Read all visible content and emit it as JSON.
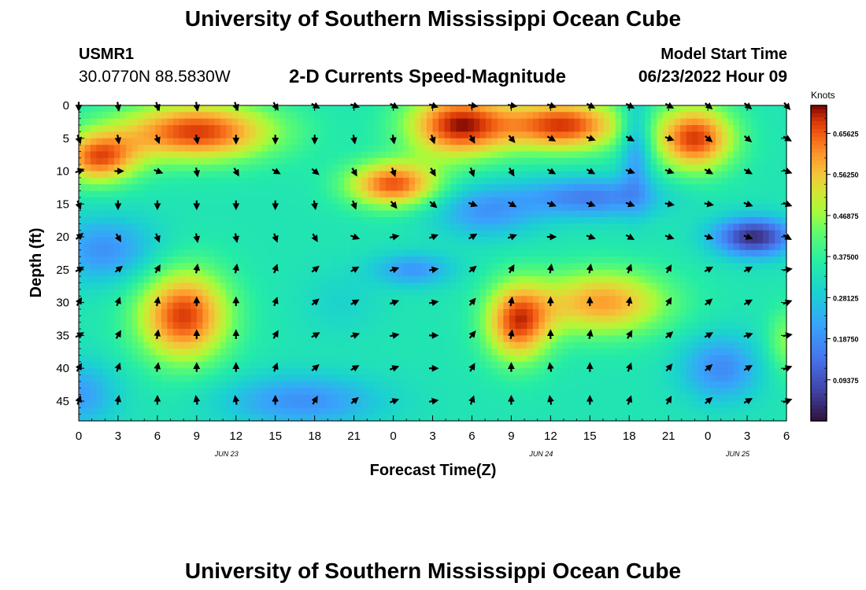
{
  "page": {
    "title": "University of Southern Mississippi Ocean Cube",
    "title_repeat": "University of Southern Mississippi Ocean Cube",
    "station": "USMR1",
    "coordinates": "30.0770N  88.5830W",
    "subtitle": "2-D Currents Speed-Magnitude",
    "model_start_label": "Model Start Time",
    "model_start_value": "06/23/2022 Hour 09"
  },
  "chart_data": {
    "type": "heatmap",
    "title": "2-D Currents Speed-Magnitude",
    "xlabel": "Forecast Time(Z)",
    "ylabel": "Depth (ft)",
    "x_tick_labels": [
      "0",
      "3",
      "6",
      "9",
      "12",
      "15",
      "18",
      "21",
      "0",
      "3",
      "6",
      "9",
      "12",
      "15",
      "18",
      "21",
      "0",
      "3",
      "6"
    ],
    "x_range_hours": [
      0,
      54
    ],
    "date_labels": [
      {
        "label": "JUN 23",
        "hour": 12
      },
      {
        "label": "JUN 24",
        "hour": 36
      },
      {
        "label": "JUN 25",
        "hour": 51
      }
    ],
    "y_ticks": [
      0,
      5,
      10,
      15,
      20,
      25,
      30,
      35,
      40,
      45
    ],
    "y_range": [
      0,
      48
    ],
    "colorbar": {
      "units": "Knots",
      "min": 0.0,
      "max": 0.72,
      "tick_values": [
        0.09375,
        0.1875,
        0.28125,
        0.375,
        0.46875,
        0.5625,
        0.65625
      ],
      "tick_labels": [
        "0.09375",
        "0.18750",
        "0.28125",
        "0.37500",
        "0.46875",
        "0.56250",
        "0.65625"
      ]
    },
    "speed_field": {
      "background": 0.34,
      "features": [
        {
          "type": "high",
          "center_hour": 9,
          "center_depth": 4,
          "spread_hours": 6,
          "spread_depth": 4.5,
          "amp": 0.34
        },
        {
          "type": "high",
          "center_hour": 1.5,
          "center_depth": 8,
          "spread_hours": 3,
          "spread_depth": 4,
          "amp": 0.3
        },
        {
          "type": "high",
          "center_hour": 29,
          "center_depth": 3,
          "spread_hours": 4,
          "spread_depth": 5,
          "amp": 0.36
        },
        {
          "type": "high",
          "center_hour": 24,
          "center_depth": 12,
          "spread_hours": 3.5,
          "spread_depth": 3.5,
          "amp": 0.32
        },
        {
          "type": "high",
          "center_hour": 37,
          "center_depth": 3,
          "spread_hours": 4.5,
          "spread_depth": 4,
          "amp": 0.34
        },
        {
          "type": "high",
          "center_hour": 47,
          "center_depth": 5,
          "spread_hours": 3,
          "spread_depth": 5,
          "amp": 0.34
        },
        {
          "type": "high",
          "center_hour": 8,
          "center_depth": 32,
          "spread_hours": 3.5,
          "spread_depth": 7,
          "amp": 0.34
        },
        {
          "type": "high",
          "center_hour": 33.5,
          "center_depth": 33,
          "spread_hours": 2.5,
          "spread_depth": 6,
          "amp": 0.32
        },
        {
          "type": "high",
          "center_hour": 40,
          "center_depth": 30,
          "spread_hours": 5,
          "spread_depth": 5,
          "amp": 0.26
        },
        {
          "type": "high",
          "center_hour": 54,
          "center_depth": 36,
          "spread_hours": 1.5,
          "spread_depth": 5,
          "amp": 0.12
        },
        {
          "type": "low",
          "center_hour": 2,
          "center_depth": 22,
          "spread_hours": 4,
          "spread_depth": 5,
          "amp": 0.15
        },
        {
          "type": "low",
          "center_hour": 0,
          "center_depth": 44,
          "spread_hours": 3,
          "spread_depth": 5,
          "amp": 0.13
        },
        {
          "type": "low",
          "center_hour": 17,
          "center_depth": 45,
          "spread_hours": 6,
          "spread_depth": 4,
          "amp": 0.15
        },
        {
          "type": "low",
          "center_hour": 25.5,
          "center_depth": 25,
          "spread_hours": 3,
          "spread_depth": 2.5,
          "amp": 0.14
        },
        {
          "type": "low",
          "center_hour": 31,
          "center_depth": 16,
          "spread_hours": 4,
          "spread_depth": 4,
          "amp": 0.14
        },
        {
          "type": "low",
          "center_hour": 39,
          "center_depth": 14,
          "spread_hours": 5,
          "spread_depth": 3,
          "amp": 0.18
        },
        {
          "type": "low",
          "center_hour": 42.5,
          "center_depth": 6,
          "spread_hours": 1.2,
          "spread_depth": 8,
          "amp": 0.16
        },
        {
          "type": "low",
          "center_hour": 51.5,
          "center_depth": 20,
          "spread_hours": 3,
          "spread_depth": 3,
          "amp": 0.3
        },
        {
          "type": "low",
          "center_hour": 49,
          "center_depth": 40,
          "spread_hours": 3,
          "spread_depth": 5,
          "amp": 0.16
        },
        {
          "type": "low",
          "center_hour": 20,
          "center_depth": 30,
          "spread_hours": 3,
          "spread_depth": 5,
          "amp": 0.04
        }
      ]
    },
    "vectors": {
      "hours": [
        0,
        3,
        6,
        9,
        12,
        15,
        18,
        21,
        24,
        27,
        30,
        33,
        36,
        39,
        42,
        45,
        48,
        51,
        54
      ],
      "depths": [
        0,
        5,
        10,
        15,
        20,
        25,
        30,
        35,
        40,
        45
      ],
      "angles_deg": [
        [
          -90,
          -80,
          -70,
          -80,
          -70,
          -60,
          -30,
          -20,
          -30,
          -20,
          -10,
          -10,
          -20,
          -30,
          -30,
          -30,
          -40,
          -40,
          -50
        ],
        [
          -70,
          -80,
          -70,
          -80,
          -90,
          -90,
          -90,
          -80,
          -80,
          -70,
          -60,
          -50,
          -30,
          -20,
          -30,
          -20,
          -40,
          -40,
          -30
        ],
        [
          20,
          0,
          -20,
          -80,
          -60,
          -30,
          -40,
          -60,
          -70,
          -60,
          -70,
          -60,
          -30,
          -30,
          -20,
          -20,
          -30,
          -30,
          -20
        ],
        [
          -70,
          -90,
          -90,
          -90,
          -90,
          -90,
          -80,
          -70,
          -50,
          -40,
          -20,
          -30,
          -20,
          -20,
          -20,
          -10,
          -10,
          -20,
          -20
        ],
        [
          40,
          -60,
          -70,
          -80,
          -80,
          -70,
          -60,
          -20,
          10,
          20,
          30,
          20,
          0,
          -20,
          -30,
          -20,
          -20,
          -20,
          -30
        ],
        [
          30,
          40,
          60,
          80,
          80,
          70,
          40,
          30,
          20,
          10,
          40,
          60,
          80,
          80,
          70,
          60,
          30,
          30,
          10
        ],
        [
          60,
          70,
          80,
          90,
          90,
          70,
          40,
          30,
          20,
          10,
          50,
          80,
          90,
          90,
          80,
          60,
          40,
          30,
          20
        ],
        [
          30,
          60,
          80,
          90,
          90,
          60,
          30,
          20,
          10,
          0,
          50,
          80,
          90,
          80,
          60,
          40,
          30,
          20,
          10
        ],
        [
          60,
          70,
          80,
          90,
          90,
          70,
          40,
          30,
          20,
          0,
          60,
          90,
          100,
          90,
          70,
          50,
          40,
          30,
          20
        ],
        [
          70,
          80,
          90,
          100,
          100,
          90,
          60,
          40,
          20,
          10,
          70,
          90,
          100,
          90,
          70,
          60,
          40,
          30,
          20
        ]
      ]
    }
  }
}
